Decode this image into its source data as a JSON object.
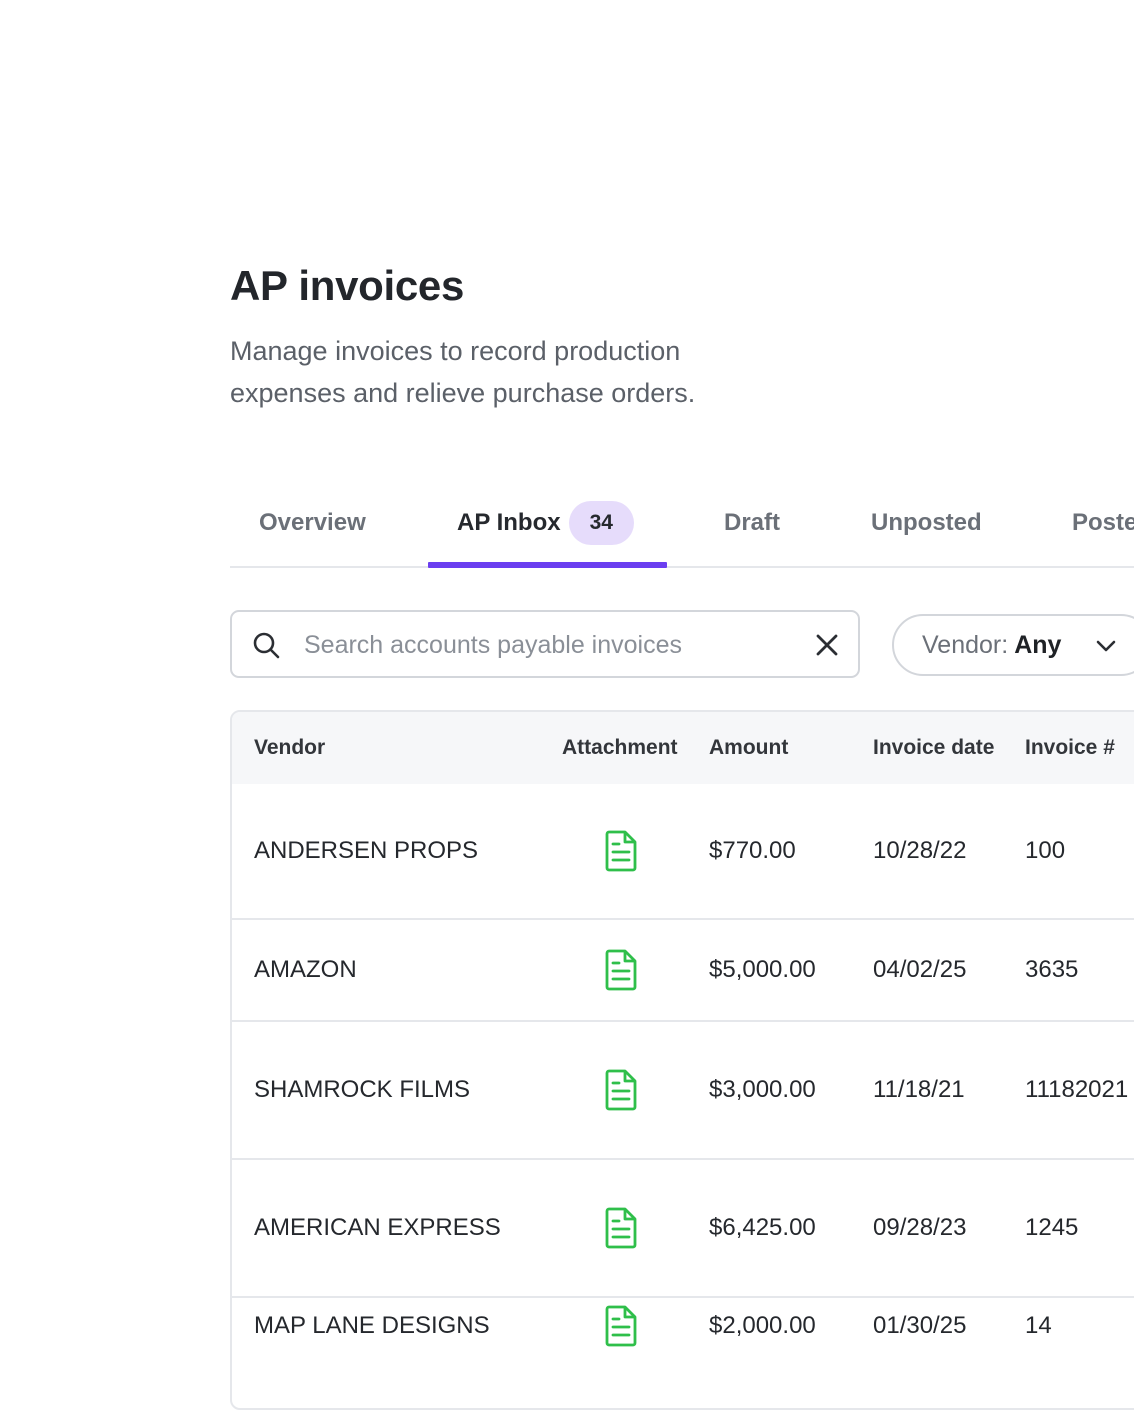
{
  "page": {
    "title": "AP invoices",
    "subtitle": "Manage invoices to record production expenses and relieve purchase orders."
  },
  "tabs": [
    {
      "label": "Overview"
    },
    {
      "label": "AP Inbox",
      "badge": "34",
      "active": true
    },
    {
      "label": "Draft"
    },
    {
      "label": "Unposted"
    },
    {
      "label": "Posted"
    }
  ],
  "search": {
    "placeholder": "Search accounts payable invoices",
    "value": "",
    "icon": "search-icon",
    "clear_icon": "close-icon"
  },
  "filter": {
    "label": "Vendor:",
    "value": "Any",
    "icon": "chevron-down-icon"
  },
  "table": {
    "columns": [
      "Vendor",
      "Attachment",
      "Amount",
      "Invoice date",
      "Invoice #"
    ],
    "rows": [
      {
        "vendor": "ANDERSEN PROPS",
        "attachment": "document-icon",
        "amount": "$770.00",
        "date": "10/28/22",
        "invoice": "100"
      },
      {
        "vendor": "AMAZON",
        "attachment": "document-icon",
        "amount": "$5,000.00",
        "date": "04/02/25",
        "invoice": "3635"
      },
      {
        "vendor": "SHAMROCK FILMS",
        "attachment": "document-icon",
        "amount": "$3,000.00",
        "date": "11/18/21",
        "invoice": "11182021"
      },
      {
        "vendor": "AMERICAN EXPRESS",
        "attachment": "document-icon",
        "amount": "$6,425.00",
        "date": "09/28/23",
        "invoice": "1245"
      },
      {
        "vendor": "MAP LANE DESIGNS",
        "attachment": "document-icon",
        "amount": "$2,000.00",
        "date": "01/30/25",
        "invoice": "14"
      }
    ]
  },
  "colors": {
    "accent": "#6b3ef0",
    "badge_bg": "#e6dcfb",
    "attachment_icon": "#2fbf4a"
  }
}
